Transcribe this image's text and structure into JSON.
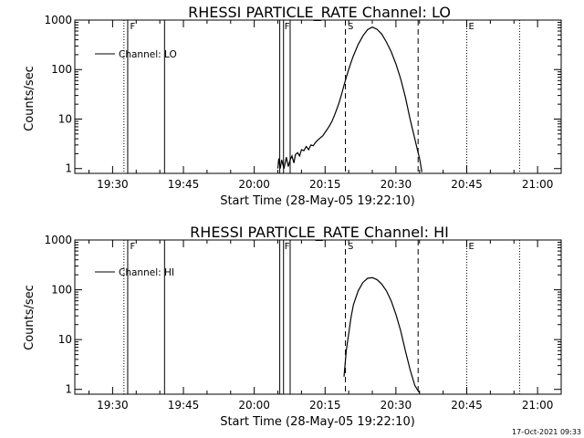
{
  "footer": {
    "timestamp": "17-Oct-2021 09:33"
  },
  "chart_data": [
    {
      "type": "line",
      "title": "RHESSI PARTICLE_RATE Channel: LO",
      "xlabel": "Start Time (28-May-05 19:22:10)",
      "ylabel": "Counts/sec",
      "y_scale": "log",
      "ylim": [
        0.8,
        1000
      ],
      "y_ticks": [
        1,
        10,
        100,
        1000
      ],
      "y_tick_labels": [
        "1",
        "10",
        "100",
        "1000"
      ],
      "x_range_min": [
        1162,
        1265
      ],
      "x_ticks_min": [
        1170,
        1185,
        1200,
        1215,
        1230,
        1245,
        1260
      ],
      "x_tick_labels": [
        "19:30",
        "19:45",
        "20:00",
        "20:15",
        "20:30",
        "20:45",
        "21:00"
      ],
      "legend": {
        "entry": "Channel: LO",
        "placement": "top-left"
      },
      "series": [
        {
          "name": "Channel: LO",
          "x_min": [
            1205,
            1205.2,
            1205.5,
            1205.8,
            1206.3,
            1206.8,
            1207.2,
            1207.6,
            1208,
            1208.4,
            1208.7,
            1209.2,
            1209.6,
            1210,
            1210.5,
            1211,
            1211.5,
            1212,
            1212.5,
            1213,
            1213.5,
            1214,
            1214.5,
            1215,
            1215.5,
            1216,
            1216.5,
            1217,
            1217.5,
            1218,
            1218.5,
            1219,
            1219.5,
            1220,
            1220.5,
            1221,
            1222,
            1223,
            1224,
            1225,
            1226,
            1227,
            1228,
            1229,
            1230,
            1231,
            1232,
            1233,
            1234,
            1234.5,
            1235,
            1235.3,
            1235.5
          ],
          "y": [
            1,
            1.6,
            1,
            1.5,
            1,
            1.7,
            1.1,
            1.5,
            1.8,
            1.3,
            1.9,
            2.1,
            1.8,
            2.4,
            2.3,
            2.8,
            2.4,
            3,
            2.9,
            3.4,
            3.8,
            4.2,
            4.6,
            5.4,
            6.3,
            7.5,
            9.2,
            12,
            16,
            22,
            32,
            48,
            70,
            100,
            140,
            190,
            320,
            480,
            640,
            720,
            650,
            520,
            360,
            230,
            130,
            65,
            28,
            10,
            4,
            2.5,
            1.6,
            1.1,
            0.85
          ]
        }
      ],
      "vertical_lines": {
        "solid_min": [
          1173.2,
          1181,
          1205.4,
          1206.2,
          1207.6
        ],
        "dotted_min": [
          1172.4,
          1245,
          1256.2
        ],
        "dashed_min": [
          1219.3,
          1234.7
        ]
      },
      "markers": [
        {
          "text": "F",
          "x_min": 1173.3
        },
        {
          "text": "F",
          "x_min": 1206.0
        },
        {
          "text": "S",
          "x_min": 1219.4
        },
        {
          "text": "E",
          "x_min": 1245.0
        }
      ]
    },
    {
      "type": "line",
      "title": "RHESSI PARTICLE_RATE Channel: HI",
      "xlabel": "Start Time (28-May-05 19:22:10)",
      "ylabel": "Counts/sec",
      "y_scale": "log",
      "ylim": [
        0.8,
        1000
      ],
      "y_ticks": [
        1,
        10,
        100,
        1000
      ],
      "y_tick_labels": [
        "1",
        "10",
        "100",
        "1000"
      ],
      "x_range_min": [
        1162,
        1265
      ],
      "x_ticks_min": [
        1170,
        1185,
        1200,
        1215,
        1230,
        1245,
        1260
      ],
      "x_tick_labels": [
        "19:30",
        "19:45",
        "20:00",
        "20:15",
        "20:30",
        "20:45",
        "21:00"
      ],
      "legend": {
        "entry": "Channel: HI",
        "placement": "top-left"
      },
      "series": [
        {
          "name": "Channel: HI",
          "x_min": [
            1219,
            1219.5,
            1220,
            1220.5,
            1221,
            1222,
            1223,
            1224,
            1225,
            1226,
            1227,
            1228,
            1229,
            1230,
            1231,
            1232,
            1233,
            1234,
            1234.5,
            1235
          ],
          "y": [
            1.8,
            6,
            13,
            28,
            50,
            95,
            140,
            170,
            175,
            160,
            130,
            95,
            60,
            32,
            15,
            6,
            2.5,
            1.2,
            1,
            0.85
          ]
        }
      ],
      "vertical_lines": {
        "solid_min": [
          1173.2,
          1181,
          1205.4,
          1206.2,
          1207.6
        ],
        "dotted_min": [
          1172.4,
          1245,
          1256.2
        ],
        "dashed_min": [
          1219.3,
          1234.7
        ]
      },
      "markers": [
        {
          "text": "F",
          "x_min": 1173.3
        },
        {
          "text": "F",
          "x_min": 1206.0
        },
        {
          "text": "S",
          "x_min": 1219.4
        },
        {
          "text": "E",
          "x_min": 1245.0
        }
      ]
    }
  ]
}
